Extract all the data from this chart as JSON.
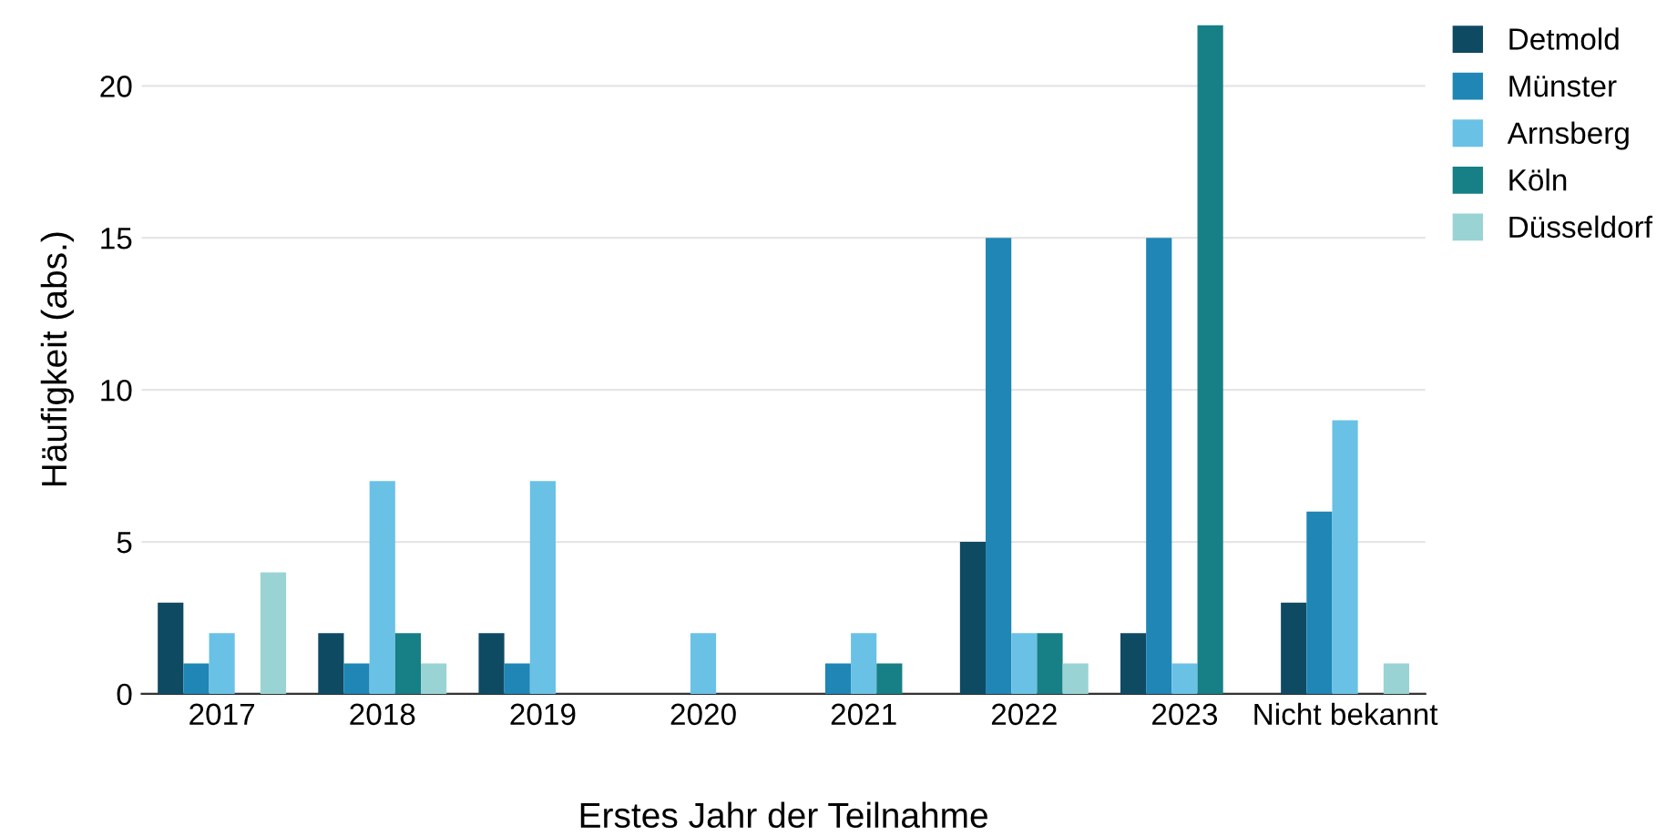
{
  "chart_data": {
    "type": "bar",
    "xlabel": "Erstes Jahr der Teilnahme",
    "ylabel": "Häufigkeit (abs.)",
    "categories": [
      "2017",
      "2018",
      "2019",
      "2020",
      "2021",
      "2022",
      "2023",
      "Nicht bekannt"
    ],
    "series": [
      {
        "name": "Detmold",
        "color": "#0f4a63",
        "values": [
          3,
          2,
          2,
          0,
          0,
          5,
          2,
          3
        ]
      },
      {
        "name": "Münster",
        "color": "#1f86b5",
        "values": [
          1,
          1,
          1,
          0,
          1,
          15,
          15,
          6
        ]
      },
      {
        "name": "Arnsberg",
        "color": "#6ac1e6",
        "values": [
          2,
          7,
          7,
          2,
          2,
          2,
          1,
          9
        ]
      },
      {
        "name": "Köln",
        "color": "#177f86",
        "values": [
          0,
          2,
          0,
          0,
          1,
          2,
          22,
          0
        ]
      },
      {
        "name": "Düsseldorf",
        "color": "#9ad3d3",
        "values": [
          4,
          1,
          0,
          0,
          0,
          1,
          0,
          1
        ]
      }
    ],
    "ylim": [
      0,
      22
    ],
    "yticks": [
      0,
      5,
      10,
      15,
      20
    ],
    "grid": "y",
    "legend": "top right"
  }
}
